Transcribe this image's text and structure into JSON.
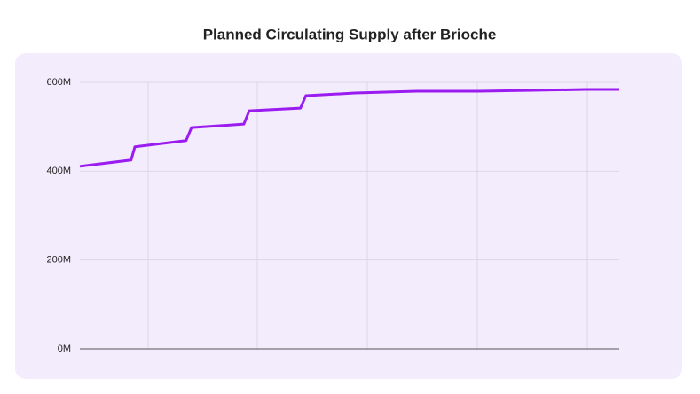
{
  "chart_data": {
    "type": "line",
    "title": "Planned Circulating Supply after Brioche",
    "xlim": [
      0,
      100
    ],
    "x": [
      0,
      9.5,
      10.2,
      19.7,
      20.7,
      30.4,
      31.4,
      40.9,
      41.9,
      51,
      62.5,
      74,
      83.9,
      93.8,
      100
    ],
    "series": [
      {
        "color": "#9b1cf0",
        "values": [
          411,
          425,
          455,
          469,
          498,
          506,
          536,
          542,
          570,
          576,
          580,
          580,
          582,
          584,
          584
        ]
      }
    ],
    "ylim": [
      0,
      600
    ],
    "yticks": [
      {
        "value": 0,
        "label": "0M"
      },
      {
        "value": 200,
        "label": "200M"
      },
      {
        "value": 400,
        "label": "400M"
      },
      {
        "value": 600,
        "label": "600M"
      }
    ],
    "grid": true
  }
}
